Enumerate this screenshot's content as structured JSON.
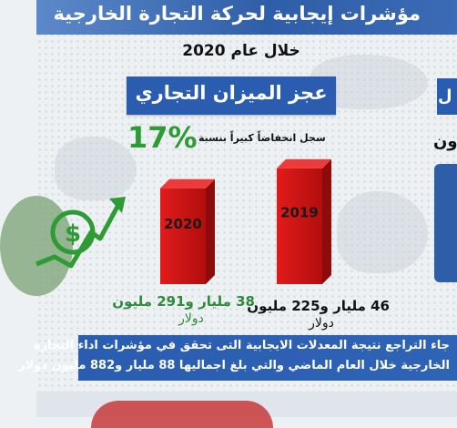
{
  "header": {
    "title": "مؤشرات إيجابية لحركة التجارة الخارجية",
    "period": "خلال عام 2020"
  },
  "deficit": {
    "label": "عجز الميزان التجاري",
    "percent": "17%",
    "note": "سجل انخفاضاً كبيراً بنسبة"
  },
  "right_cut": {
    "box_text": "ل",
    "line_text": "ون"
  },
  "colors": {
    "banner": "#2f5ea8",
    "box": "#2a5db0",
    "bar": "#cc0f0f",
    "green": "#2e9b35"
  },
  "icons": [
    "dollar-icon",
    "trend-arrow-icon"
  ],
  "chart_data": {
    "type": "bar",
    "categories": [
      "2020",
      "2019"
    ],
    "values": [
      38.291,
      46.225
    ],
    "value_labels": [
      {
        "amount": "38 مليار و291 مليون",
        "unit": "دولار"
      },
      {
        "amount": "46 مليار و225 مليون",
        "unit": "دولار"
      }
    ],
    "title": "",
    "xlabel": "",
    "ylabel": ""
  },
  "footer": {
    "line1": "جاء التراجع نتيجة المعدلات الايجابية التى تحقق في مؤشرات اداء التجارة",
    "line2": "الخارجية خلال العام الماضي والتي بلغ اجماليها 88 مليار و882 مليون دولار"
  }
}
